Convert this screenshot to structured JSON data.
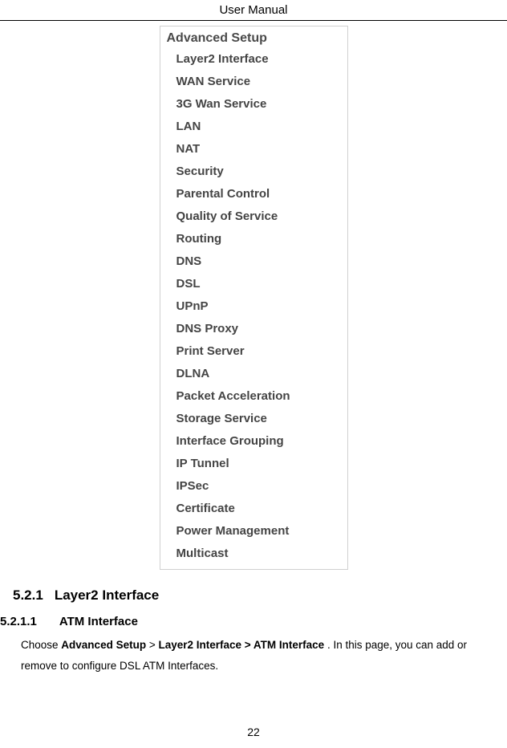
{
  "header": {
    "title": "User Manual"
  },
  "menu": {
    "title": "Advanced Setup",
    "items": [
      "Layer2 Interface",
      "WAN Service",
      "3G Wan Service",
      "LAN",
      "NAT",
      "Security",
      "Parental Control",
      "Quality of Service",
      "Routing",
      "DNS",
      "DSL",
      "UPnP",
      "DNS Proxy",
      "Print Server",
      "DLNA",
      "Packet Acceleration",
      "Storage Service",
      "Interface Grouping",
      "IP Tunnel",
      "IPSec",
      "Certificate",
      "Power Management",
      "Multicast"
    ]
  },
  "section1": {
    "number": "5.2.1",
    "title": "Layer2 Interface"
  },
  "section2": {
    "number": "5.2.1.1",
    "title": "ATM Interface"
  },
  "paragraph": {
    "pre": "Choose ",
    "bold1": "Advanced Setup",
    "mid1": " > ",
    "bold2": "Layer2 Interface > ATM Interface",
    "post": " . In this page, you can add or remove to configure DSL ATM Interfaces."
  },
  "pageNumber": "22",
  "colors": {
    "menu_text": "#444444",
    "menu_border": "#d0d0d0",
    "body_text": "#000000",
    "background": "#ffffff"
  }
}
